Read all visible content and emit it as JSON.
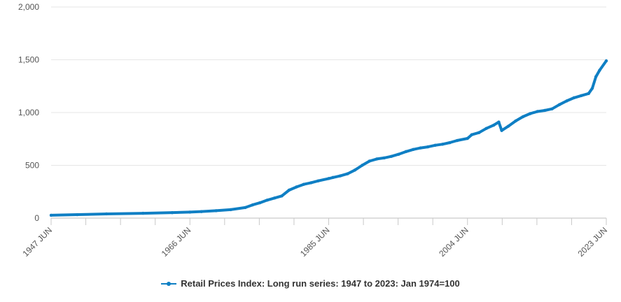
{
  "chart_data": {
    "type": "line",
    "title": "",
    "xlabel": "",
    "ylabel": "",
    "ylim": [
      0,
      2000
    ],
    "y_ticks": [
      0,
      500,
      1000,
      1500,
      2000
    ],
    "y_tick_labels": [
      "0",
      "500",
      "1,000",
      "1,500",
      "2,000"
    ],
    "x_tick_labels": [
      "1947 JUN",
      "1966 JUN",
      "1985 JUN",
      "2004 JUN",
      "2023 JUN"
    ],
    "x_tick_years": [
      1947.42,
      1966.42,
      1985.42,
      2004.42,
      2023.42
    ],
    "xlim": [
      1947.42,
      2023.42
    ],
    "grid": "horizontal",
    "legend_position": "bottom",
    "series": [
      {
        "name": "Retail Prices Index: Long run series: 1947 to 2023: Jan 1974=100",
        "color": "#0f7fc4",
        "x": [
          1947.42,
          1951,
          1955,
          1960,
          1964,
          1966.42,
          1968,
          1970,
          1972,
          1974,
          1975,
          1976,
          1977,
          1978,
          1979,
          1980,
          1981,
          1982,
          1983,
          1984,
          1985.42,
          1986,
          1987,
          1988,
          1989,
          1990,
          1991,
          1992,
          1993,
          1994,
          1995,
          1996,
          1997,
          1998,
          1999,
          2000,
          2001,
          2002,
          2003,
          2004.42,
          2005,
          2006,
          2007,
          2008,
          2008.7,
          2009.1,
          2010,
          2011,
          2012,
          2013,
          2014,
          2015,
          2016,
          2017,
          2018,
          2019,
          2020,
          2021,
          2021.5,
          2022,
          2022.5,
          2023.42
        ],
        "y": [
          27,
          33,
          40,
          46,
          52,
          57,
          62,
          70,
          80,
          100,
          125,
          145,
          170,
          190,
          210,
          265,
          295,
          320,
          335,
          353,
          375,
          385,
          400,
          420,
          455,
          500,
          540,
          560,
          570,
          585,
          605,
          630,
          650,
          665,
          675,
          690,
          700,
          715,
          735,
          755,
          790,
          810,
          850,
          880,
          910,
          830,
          870,
          920,
          960,
          990,
          1010,
          1020,
          1035,
          1075,
          1110,
          1140,
          1160,
          1180,
          1230,
          1340,
          1400,
          1490
        ]
      }
    ]
  }
}
